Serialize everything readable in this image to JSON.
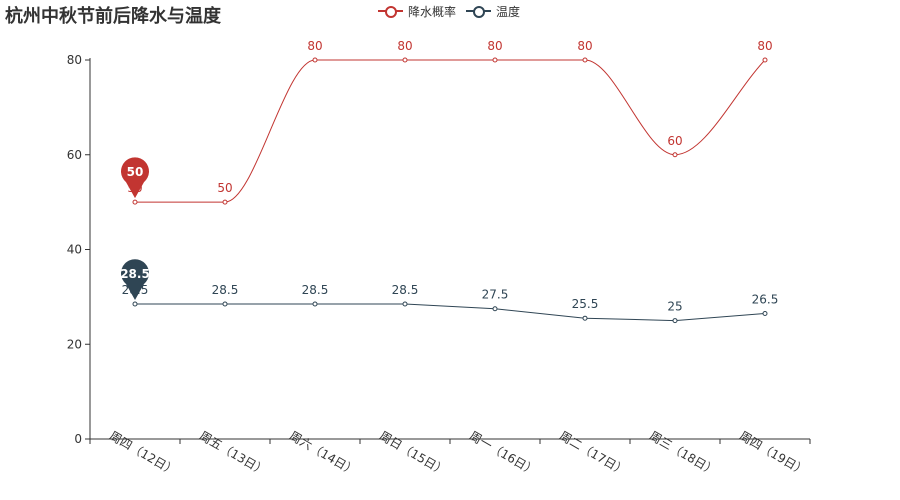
{
  "title": "杭州中秋节前后降水与温度",
  "colors": {
    "series1": "#c23531",
    "series2": "#2f4554",
    "axis": "#333333"
  },
  "chart_data": {
    "type": "line",
    "title": "杭州中秋节前后降水与温度",
    "categories": [
      "周四（12日）",
      "周五（13日）",
      "周六（14日）",
      "周日（15日）",
      "周一（16日）",
      "周二（17日）",
      "周三（18日）",
      "周四（19日）"
    ],
    "series": [
      {
        "name": "降水概率",
        "values": [
          50,
          50,
          80,
          80,
          80,
          80,
          60,
          80
        ],
        "smooth": true,
        "color": "#c23531",
        "marker": {
          "index": 0,
          "label": "50"
        }
      },
      {
        "name": "温度",
        "values": [
          28.5,
          28.5,
          28.5,
          28.5,
          27.5,
          25.5,
          25,
          26.5
        ],
        "smooth": false,
        "color": "#2f4554",
        "marker": {
          "index": 0,
          "label": "28.5"
        }
      }
    ],
    "yticks": [
      "0",
      "20",
      "40",
      "60",
      "80"
    ],
    "ylim": [
      0,
      80
    ],
    "legend_placement": "top-center",
    "grid": false
  }
}
